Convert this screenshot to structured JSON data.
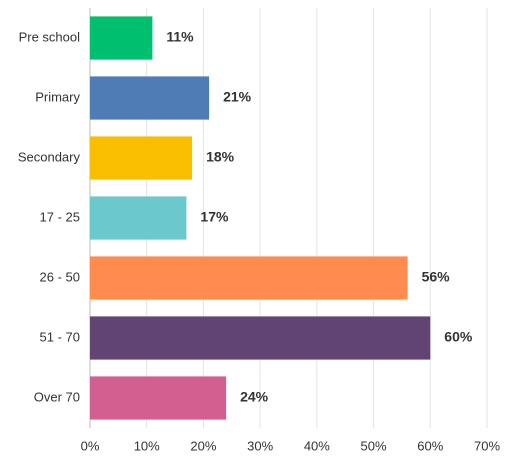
{
  "chart_data": {
    "type": "bar",
    "orientation": "horizontal",
    "categories": [
      "Pre school",
      "Primary",
      "Secondary",
      "17 - 25",
      "26 - 50",
      "51 - 70",
      "Over 70"
    ],
    "values": [
      11,
      21,
      18,
      17,
      56,
      60,
      24
    ],
    "value_labels": [
      "11%",
      "21%",
      "18%",
      "17%",
      "56%",
      "60%",
      "24%"
    ],
    "colors": [
      "#00bf6f",
      "#507cb6",
      "#f9be00",
      "#6bc8cd",
      "#ff8b4f",
      "#624474",
      "#d25f90"
    ],
    "xlim": [
      0,
      70
    ],
    "xticks": [
      {
        "value": 0,
        "label": "0%"
      },
      {
        "value": 10,
        "label": "10%"
      },
      {
        "value": 20,
        "label": "20%"
      },
      {
        "value": 30,
        "label": "30%"
      },
      {
        "value": 40,
        "label": "40%"
      },
      {
        "value": 50,
        "label": "50%"
      },
      {
        "value": 60,
        "label": "60%"
      },
      {
        "value": 70,
        "label": "70%"
      }
    ],
    "grid": true
  }
}
